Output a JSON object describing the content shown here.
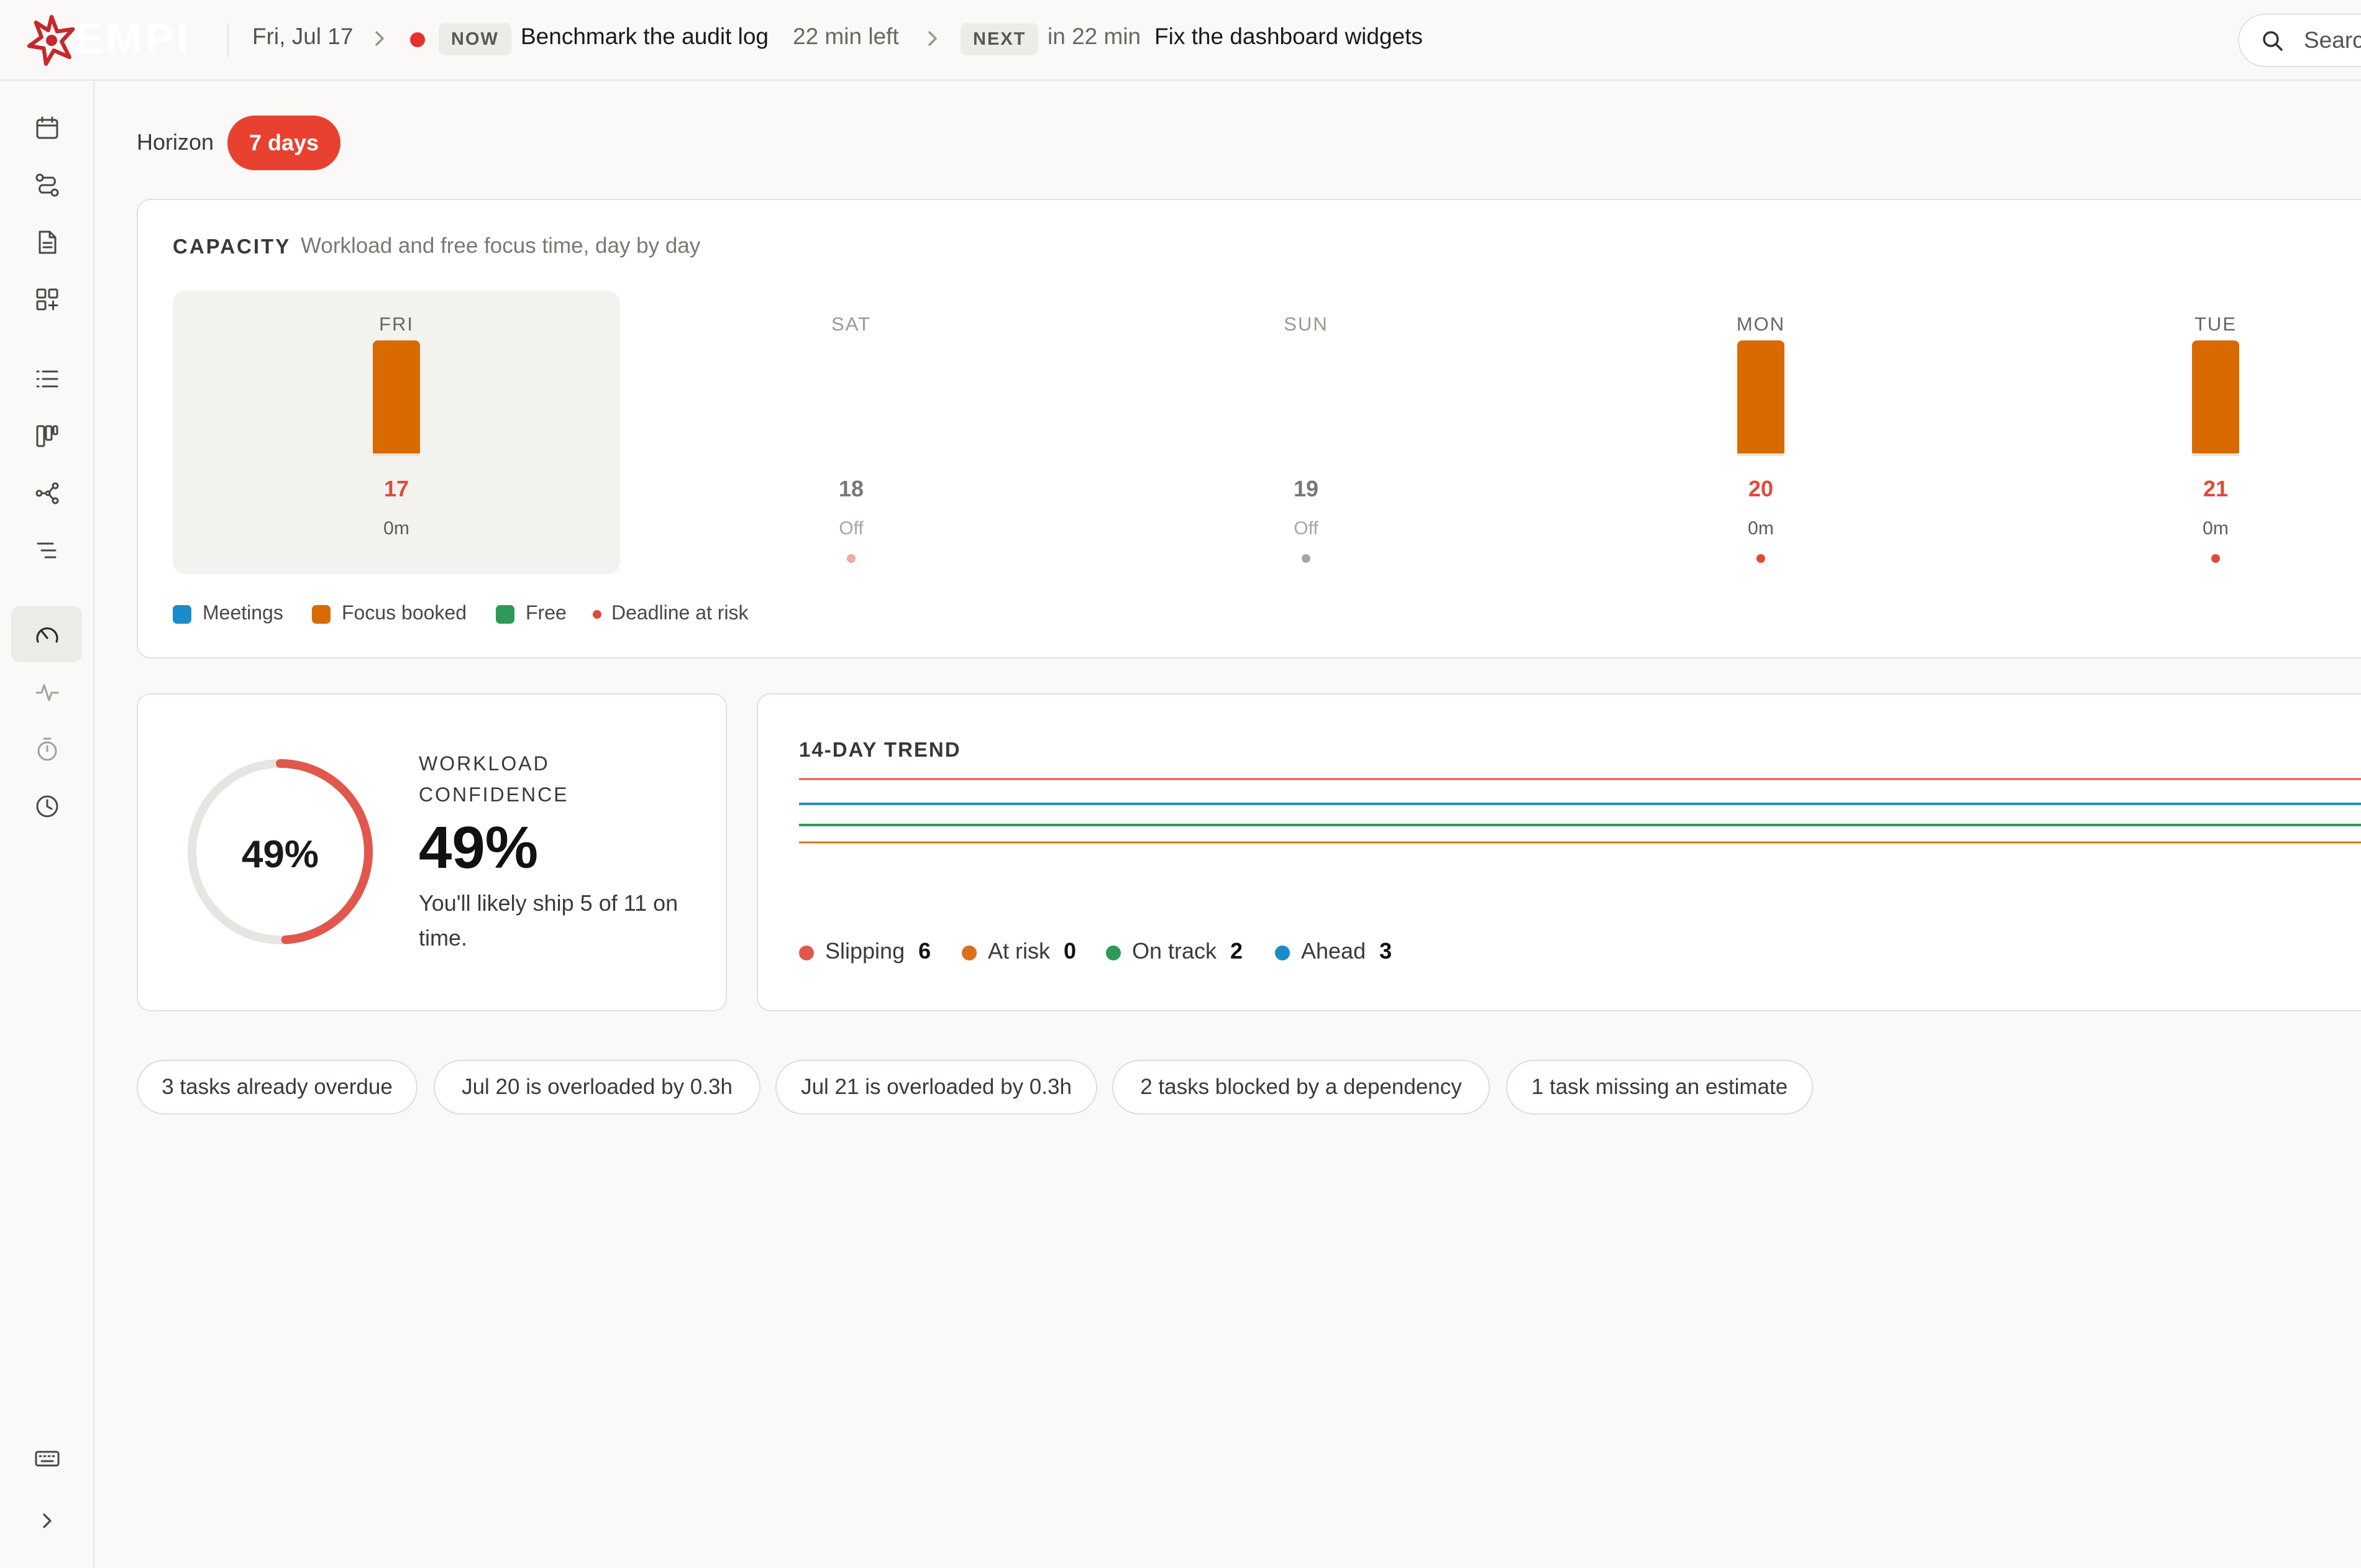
{
  "topbar": {
    "logo_text": "EMPI",
    "date": "Fri, Jul 17",
    "now_tag": "NOW",
    "now_task": "Benchmark the audit log",
    "now_remaining": "22 min left",
    "next_tag": "NEXT",
    "next_time": "in 22 min",
    "next_task": "Fix the dashboard widgets",
    "search_placeholder": "Search"
  },
  "sidebar": {
    "items": [
      {
        "icon": "calendar-icon"
      },
      {
        "icon": "routes-icon"
      },
      {
        "icon": "document-icon"
      },
      {
        "icon": "widgets-add-icon"
      },
      {
        "icon": "list-icon"
      },
      {
        "icon": "kanban-icon"
      },
      {
        "icon": "graph-icon"
      },
      {
        "icon": "outline-icon"
      },
      {
        "icon": "gauge-icon",
        "active": true
      },
      {
        "icon": "pulse-icon"
      },
      {
        "icon": "stopwatch-icon"
      },
      {
        "icon": "clock-icon"
      },
      {
        "icon": "keyboard-icon"
      },
      {
        "icon": "chevron-right-icon"
      }
    ]
  },
  "horizon": {
    "label": "Horizon",
    "value": "7 days"
  },
  "capacity": {
    "title": "CAPACITY",
    "subtitle": "Workload and free focus time, day by day",
    "days": [
      {
        "name": "FRI",
        "date": "17",
        "value": "0m",
        "today": true,
        "focus_booked": 1,
        "dot_color": null
      },
      {
        "name": "SAT",
        "date": "18",
        "value": "Off",
        "today": false,
        "focus_booked": 0,
        "dot_color": "#f0a8a2"
      },
      {
        "name": "SUN",
        "date": "19",
        "value": "Off",
        "today": false,
        "focus_booked": 0,
        "dot_color": "#a9a6a0"
      },
      {
        "name": "MON",
        "date": "20",
        "value": "0m",
        "today": false,
        "focus_booked": 1,
        "dot_color": "#e04a3a"
      },
      {
        "name": "TUE",
        "date": "21",
        "value": "0m",
        "today": false,
        "focus_booked": 1,
        "dot_color": "#e04a3a"
      }
    ],
    "legend": [
      {
        "label": "Meetings",
        "color": "#1a8cc9"
      },
      {
        "label": "Focus booked",
        "color": "#d96a00"
      },
      {
        "label": "Free",
        "color": "#2e9a5a"
      },
      {
        "label": "Deadline at risk",
        "color": "#e04a3a"
      }
    ]
  },
  "confidence": {
    "gauge_value": "49%",
    "label": "WORKLOAD CONFIDENCE",
    "big_value": "49%",
    "fraction": 0.49,
    "description": "You'll likely ship 5 of 11 on time.",
    "colors": {
      "arc": "#e2574c",
      "track": "#e7e5e1"
    }
  },
  "trend": {
    "title": "14-DAY TREND",
    "series": [
      {
        "name": "Slipping",
        "count": "6",
        "color": "#e2574c"
      },
      {
        "name": "At risk",
        "count": "0",
        "color": "#d9701a"
      },
      {
        "name": "On track",
        "count": "2",
        "color": "#2e9a5a"
      },
      {
        "name": "Ahead",
        "count": "3",
        "color": "#1a8cc9"
      }
    ]
  },
  "warnings": [
    "3 tasks already overdue",
    "Jul 20 is overloaded by 0.3h",
    "Jul 21 is overloaded by 0.3h",
    "2 tasks blocked by a dependency",
    "1 task missing an estimate"
  ]
}
